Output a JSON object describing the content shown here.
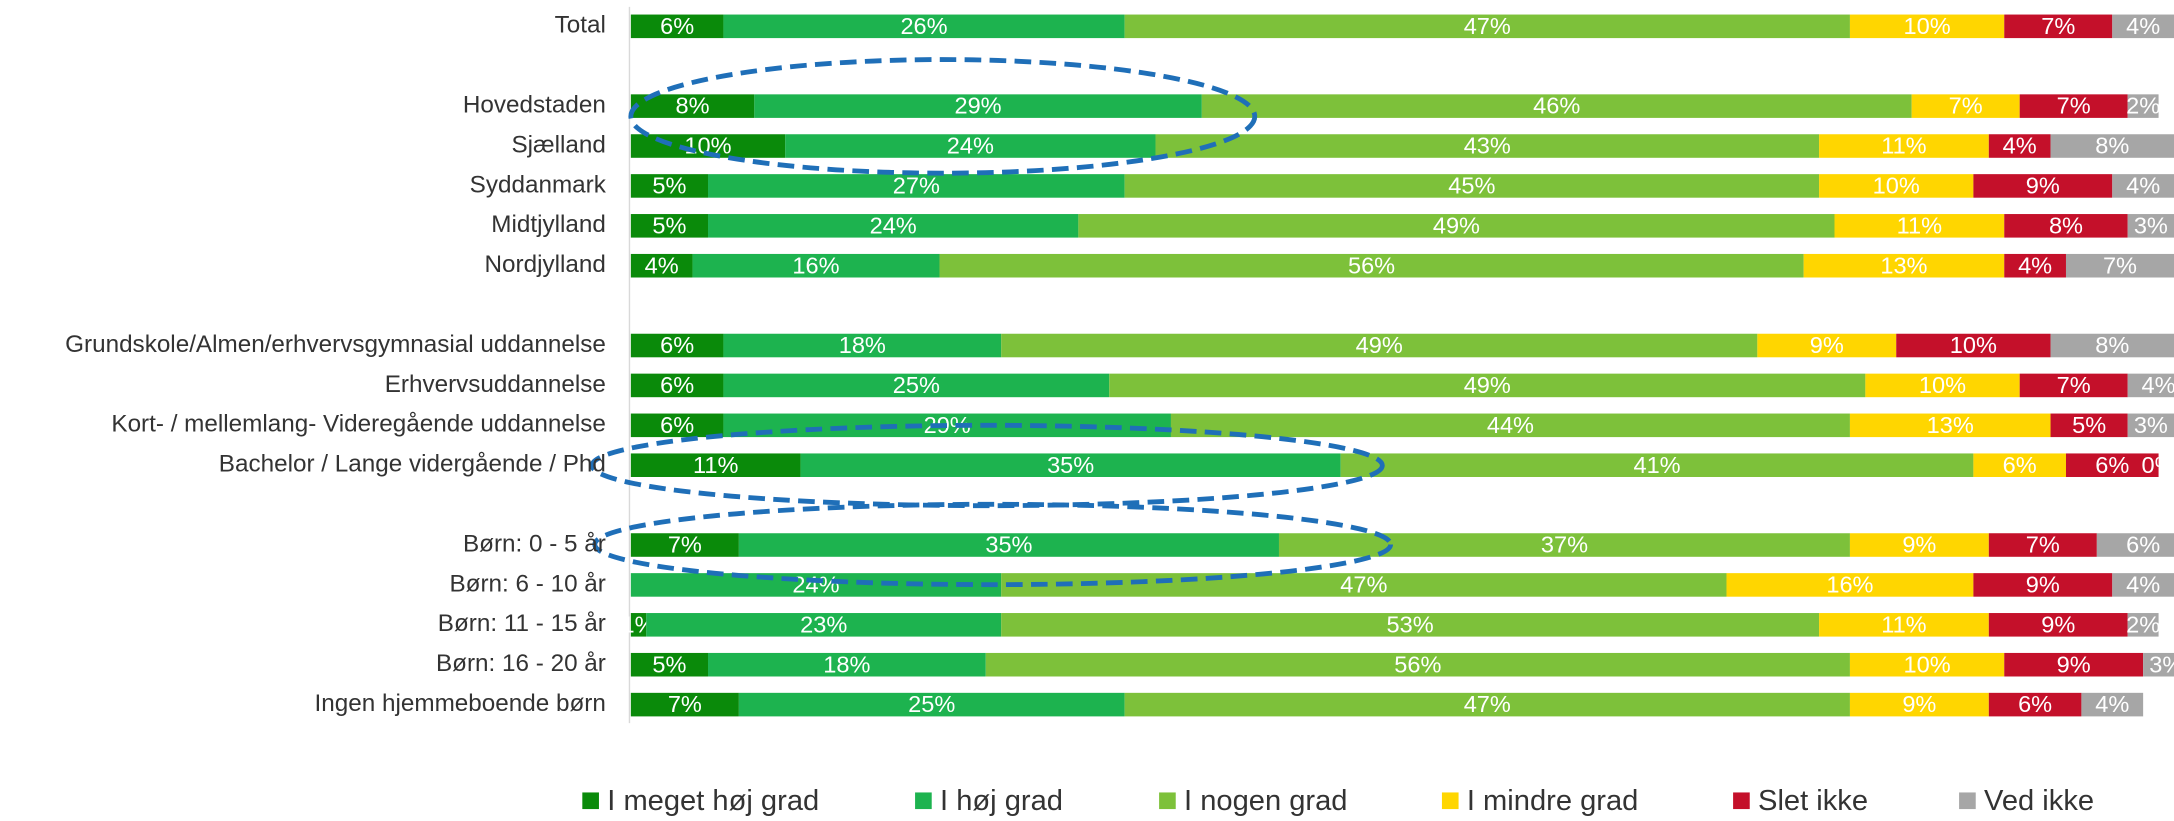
{
  "chart_data": {
    "type": "stacked-bar-horizontal",
    "categories": [
      "Total",
      null,
      "Hovedstaden",
      "Sjælland",
      "Syddanmark",
      "Midtjylland",
      "Nordjylland",
      null,
      "Grundskole/Almen/erhvervsgymnasial uddannelse",
      "Erhvervsuddannelse",
      "Kort- / mellemlang- Videregående uddannelse",
      "Bachelor / Lange vidergående / Phd",
      null,
      "Børn: 0 - 5 år",
      "Børn: 6 - 10 år",
      "Børn: 11 - 15 år",
      "Børn: 16 - 20 år",
      "Ingen hjemmeboende børn"
    ],
    "xlim": [
      0,
      100
    ],
    "legend": "bottom",
    "series": [
      {
        "name": "I meget høj grad",
        "color": "#0a8a0a",
        "values": [
          6,
          null,
          8,
          10,
          5,
          5,
          4,
          null,
          6,
          6,
          6,
          11,
          null,
          7,
          null,
          1,
          5,
          7
        ],
        "value_labels": [
          "6%",
          null,
          "8%",
          "10%",
          "5%",
          "5%",
          "4%",
          null,
          "6%",
          "6%",
          "6%",
          "11%",
          null,
          "7%",
          null,
          "1%",
          "5%",
          "7%"
        ]
      },
      {
        "name": "I høj grad",
        "color": "#1db34f",
        "values": [
          26,
          null,
          29,
          24,
          27,
          24,
          16,
          null,
          18,
          25,
          29,
          35,
          null,
          35,
          24,
          23,
          18,
          25
        ],
        "value_labels": [
          "26%",
          null,
          "29%",
          "24%",
          "27%",
          "24%",
          "16%",
          null,
          "18%",
          "25%",
          "29%",
          "35%",
          null,
          "35%",
          "24%",
          "23%",
          "18%",
          "25%"
        ]
      },
      {
        "name": "I nogen grad",
        "color": "#7dc13a",
        "values": [
          47,
          null,
          46,
          43,
          45,
          49,
          56,
          null,
          49,
          49,
          44,
          41,
          null,
          37,
          47,
          53,
          56,
          47
        ],
        "value_labels": [
          "47%",
          null,
          "46%",
          "43%",
          "45%",
          "49%",
          "56%",
          null,
          "49%",
          "49%",
          "44%",
          "41%",
          null,
          "37%",
          "47%",
          "53%",
          "56%",
          "47%"
        ]
      },
      {
        "name": "I mindre grad",
        "color": "#ffd600",
        "values": [
          10,
          null,
          7,
          11,
          10,
          11,
          13,
          null,
          9,
          10,
          13,
          6,
          null,
          9,
          16,
          11,
          10,
          9
        ],
        "value_labels": [
          "10%",
          null,
          "7%",
          "11%",
          "10%",
          "11%",
          "13%",
          null,
          "9%",
          "10%",
          "13%",
          "6%",
          null,
          "9%",
          "16%",
          "11%",
          "10%",
          "9%"
        ]
      },
      {
        "name": "Slet ikke",
        "color": "#c4102a",
        "values": [
          7,
          null,
          7,
          4,
          9,
          8,
          4,
          null,
          10,
          7,
          5,
          6,
          null,
          7,
          9,
          9,
          9,
          6
        ],
        "value_labels": [
          "7%",
          null,
          "7%",
          "4%",
          "9%",
          "8%",
          "4%",
          null,
          "10%",
          "7%",
          "5%",
          "6%",
          null,
          "7%",
          "9%",
          "9%",
          "9%",
          "6%"
        ]
      },
      {
        "name": "Ved ikke",
        "color": "#a6a6a6",
        "values": [
          4,
          null,
          2,
          8,
          4,
          3,
          7,
          null,
          8,
          4,
          3,
          0,
          null,
          6,
          4,
          2,
          3,
          4
        ],
        "value_labels": [
          "4%",
          null,
          "2%",
          "8%",
          "4%",
          "3%",
          "7%",
          null,
          "8%",
          "4%",
          "3%",
          "0%",
          null,
          "6%",
          "4%",
          "2%",
          "3%",
          "4%"
        ]
      }
    ]
  }
}
